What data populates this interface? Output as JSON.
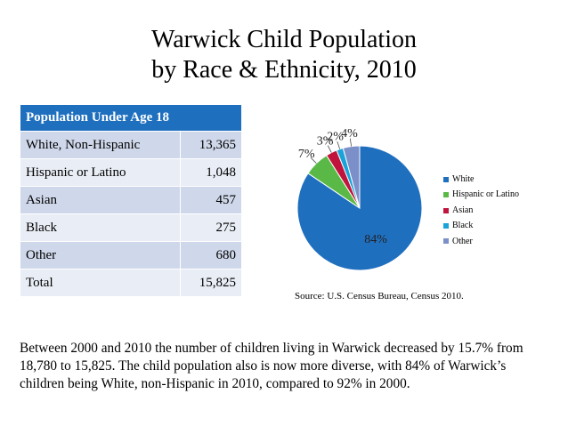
{
  "title": {
    "line1": "Warwick Child Population",
    "line2": "by Race & Ethnicity, 2010"
  },
  "table": {
    "header": "Population Under Age 18",
    "rows": [
      {
        "label": "White, Non-Hispanic",
        "value": "13,365"
      },
      {
        "label": "Hispanic or Latino",
        "value": "1,048"
      },
      {
        "label": "Asian",
        "value": "457"
      },
      {
        "label": "Black",
        "value": "275"
      },
      {
        "label": "Other",
        "value": "680"
      },
      {
        "label": "Total",
        "value": "15,825"
      }
    ]
  },
  "chart_data": {
    "type": "pie",
    "categories": [
      "White",
      "Hispanic or Latino",
      "Asian",
      "Black",
      "Other"
    ],
    "values": [
      13365,
      1048,
      457,
      275,
      680
    ],
    "labels": [
      "84%",
      "7%",
      "3%",
      "2%",
      "4%"
    ],
    "colors": [
      "#1f6fbf",
      "#5ab946",
      "#c0143c",
      "#1aa3d9",
      "#7b8fc9"
    ],
    "legend_position": "right"
  },
  "source": "Source: U.S. Census Bureau, Census 2010.",
  "paragraph": "Between 2000 and 2010 the number of children living in Warwick decreased by 15.7% from 18,780 to 15,825. The child population also is now more diverse, with 84% of Warwick’s children being White, non-Hispanic in 2010, compared to 92% in 2000."
}
